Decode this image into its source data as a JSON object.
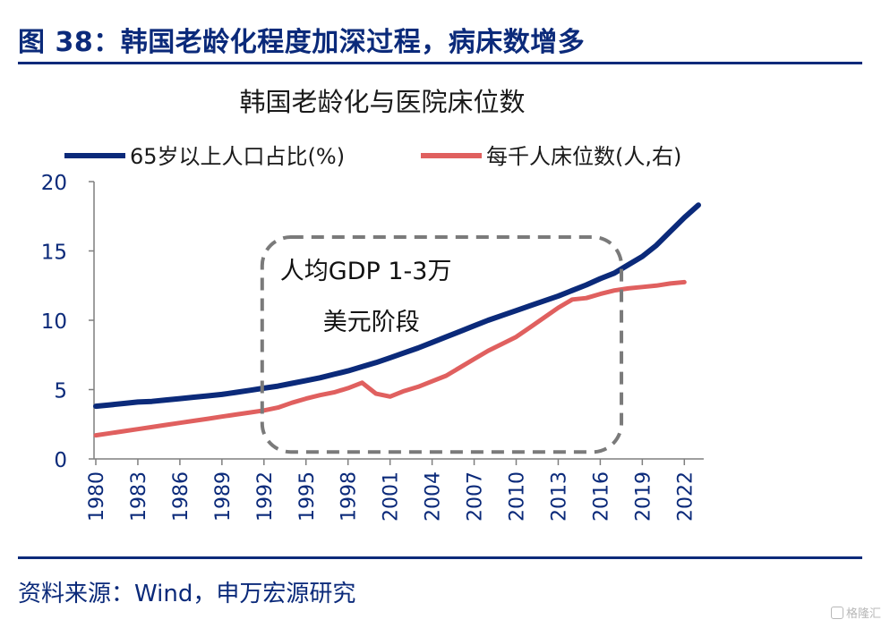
{
  "figure_title": "图 38：韩国老龄化程度加深过程，病床数增多",
  "source_text": "资料来源：Wind，申万宏源研究",
  "watermark_text": "格隆汇",
  "colors": {
    "navy": "#0b2a7a",
    "red": "#e0605f",
    "axis": "#7f7f7f",
    "box": "#7a7a7a"
  },
  "chart_data": {
    "type": "line",
    "title": "韩国老龄化与医院床位数",
    "xlabel": "",
    "ylabel": "",
    "xlim": [
      1980,
      2023
    ],
    "ylim": [
      0,
      20
    ],
    "yticks": [
      0,
      5,
      10,
      15,
      20
    ],
    "xticks": [
      "1980",
      "1983",
      "1986",
      "1989",
      "1992",
      "1995",
      "1998",
      "2001",
      "2004",
      "2007",
      "2010",
      "2013",
      "2016",
      "2019",
      "2022"
    ],
    "legend_position": "top",
    "annotation": {
      "line1": "人均GDP 1-3万",
      "line2": "美元阶段",
      "x_range": [
        1992,
        2017
      ],
      "y_range": [
        0.5,
        16
      ]
    },
    "series": [
      {
        "name": "65岁以上人口占比(%)",
        "color": "#0b2a7a",
        "x": [
          1980,
          1981,
          1982,
          1983,
          1984,
          1985,
          1986,
          1987,
          1988,
          1989,
          1990,
          1991,
          1992,
          1993,
          1994,
          1995,
          1996,
          1997,
          1998,
          1999,
          2000,
          2001,
          2002,
          2003,
          2004,
          2005,
          2006,
          2007,
          2008,
          2009,
          2010,
          2011,
          2012,
          2013,
          2014,
          2015,
          2016,
          2017,
          2018,
          2019,
          2020,
          2021,
          2022,
          2023
        ],
        "values": [
          3.8,
          3.9,
          4.0,
          4.1,
          4.15,
          4.25,
          4.35,
          4.45,
          4.55,
          4.65,
          4.8,
          4.95,
          5.1,
          5.25,
          5.45,
          5.65,
          5.85,
          6.1,
          6.35,
          6.65,
          6.95,
          7.3,
          7.65,
          8.0,
          8.4,
          8.8,
          9.2,
          9.6,
          10.0,
          10.35,
          10.7,
          11.05,
          11.4,
          11.75,
          12.15,
          12.55,
          13.0,
          13.4,
          14.0,
          14.6,
          15.4,
          16.4,
          17.4,
          18.3
        ]
      },
      {
        "name": "每千人床位数(人,右)",
        "color": "#e0605f",
        "x": [
          1980,
          1981,
          1982,
          1983,
          1984,
          1985,
          1986,
          1987,
          1988,
          1989,
          1990,
          1991,
          1992,
          1993,
          1994,
          1995,
          1996,
          1997,
          1998,
          1999,
          2000,
          2001,
          2002,
          2003,
          2004,
          2005,
          2006,
          2007,
          2008,
          2009,
          2010,
          2011,
          2012,
          2013,
          2014,
          2015,
          2016,
          2017,
          2018,
          2019,
          2020,
          2021,
          2022
        ],
        "values": [
          1.7,
          1.85,
          2.0,
          2.15,
          2.3,
          2.45,
          2.6,
          2.75,
          2.9,
          3.05,
          3.2,
          3.35,
          3.5,
          3.7,
          4.05,
          4.35,
          4.6,
          4.8,
          5.1,
          5.5,
          4.7,
          4.5,
          4.9,
          5.2,
          5.6,
          6.0,
          6.6,
          7.2,
          7.8,
          8.3,
          8.8,
          9.5,
          10.2,
          10.9,
          11.5,
          11.6,
          11.9,
          12.15,
          12.3,
          12.4,
          12.5,
          12.65,
          12.75
        ]
      }
    ]
  }
}
